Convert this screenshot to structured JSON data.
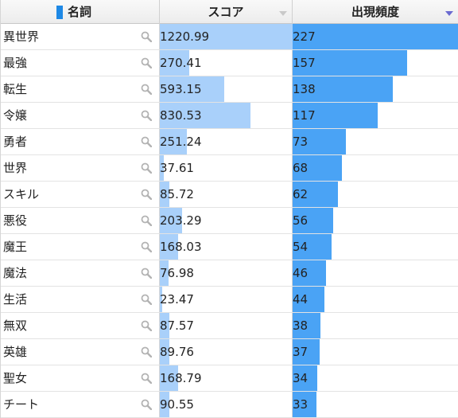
{
  "header": {
    "name_label": "名詞",
    "score_label": "スコア",
    "freq_label": "出現頻度"
  },
  "rows": [
    {
      "term": "異世界",
      "score": "1220.99",
      "score_value": 1220.99,
      "freq": "227",
      "freq_value": 227
    },
    {
      "term": "最強",
      "score": "270.41",
      "score_value": 270.41,
      "freq": "157",
      "freq_value": 157
    },
    {
      "term": "転生",
      "score": "593.15",
      "score_value": 593.15,
      "freq": "138",
      "freq_value": 138
    },
    {
      "term": "令嬢",
      "score": "830.53",
      "score_value": 830.53,
      "freq": "117",
      "freq_value": 117
    },
    {
      "term": "勇者",
      "score": "251.24",
      "score_value": 251.24,
      "freq": "73",
      "freq_value": 73
    },
    {
      "term": "世界",
      "score": "37.61",
      "score_value": 37.61,
      "freq": "68",
      "freq_value": 68
    },
    {
      "term": "スキル",
      "score": "85.72",
      "score_value": 85.72,
      "freq": "62",
      "freq_value": 62
    },
    {
      "term": "悪役",
      "score": "203.29",
      "score_value": 203.29,
      "freq": "56",
      "freq_value": 56
    },
    {
      "term": "魔王",
      "score": "168.03",
      "score_value": 168.03,
      "freq": "54",
      "freq_value": 54
    },
    {
      "term": "魔法",
      "score": "76.98",
      "score_value": 76.98,
      "freq": "46",
      "freq_value": 46
    },
    {
      "term": "生活",
      "score": "23.47",
      "score_value": 23.47,
      "freq": "44",
      "freq_value": 44
    },
    {
      "term": "無双",
      "score": "87.57",
      "score_value": 87.57,
      "freq": "38",
      "freq_value": 38
    },
    {
      "term": "英雄",
      "score": "89.76",
      "score_value": 89.76,
      "freq": "37",
      "freq_value": 37
    },
    {
      "term": "聖女",
      "score": "168.79",
      "score_value": 168.79,
      "freq": "34",
      "freq_value": 34
    },
    {
      "term": "チート",
      "score": "90.55",
      "score_value": 90.55,
      "freq": "33",
      "freq_value": 33
    }
  ],
  "icons": {
    "row_action": "magnifier-icon",
    "score_sort": "sort-triangle-icon",
    "freq_sort": "sort-triangle-icon"
  },
  "colors": {
    "name_marker": "#1e88e5",
    "score_bar": "#a9d0fa",
    "freq_bar": "#4aa3f5",
    "freq_sort_active": "#6a6ad0",
    "score_sort_inactive": "#c9c9c9"
  },
  "sort": {
    "column": "freq",
    "direction": "descending"
  }
}
